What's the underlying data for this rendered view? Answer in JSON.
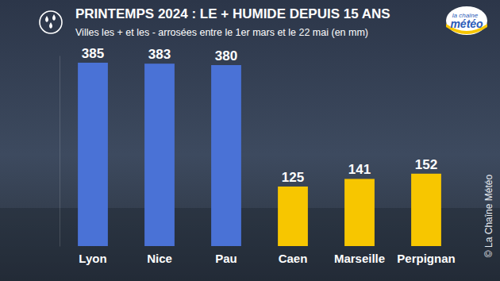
{
  "chart_data": {
    "type": "bar",
    "title": "PRINTEMPS 2024 : LE + HUMIDE DEPUIS 15 ANS",
    "subtitle": "Villes les + et les - arrosées entre le 1er mars et le 22 mai (en mm)",
    "categories": [
      "Lyon",
      "Nice",
      "Pau",
      "Caen",
      "Marseille",
      "Perpignan"
    ],
    "values": [
      385,
      383,
      380,
      125,
      141,
      152
    ],
    "colors": [
      "#4a72d6",
      "#4a72d6",
      "#4a72d6",
      "#f7c600",
      "#f7c600",
      "#f7c600"
    ],
    "ylim": [
      0,
      400
    ],
    "yticks": [],
    "data_labels": true,
    "tick_labels": "x",
    "annotations": [
      "la chaîne",
      "météo",
      "© La Chaîne Météo"
    ]
  }
}
